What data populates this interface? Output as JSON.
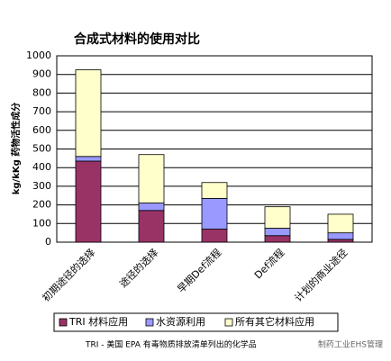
{
  "chart_data": {
    "type": "stacked_bar",
    "title": "合成式材料的使用对比",
    "y_label": "kg/kKg 药物活性成分",
    "categories": [
      "初期途径的选择",
      "途径的选择",
      "早期Def流程",
      "Def流程",
      "计划的商业途径"
    ],
    "series": [
      {
        "name": "TRI 材料应用",
        "color": "#993366",
        "values": [
          435,
          170,
          70,
          35,
          15
        ]
      },
      {
        "name": "水资源利用",
        "color": "#9999ff",
        "values": [
          25,
          40,
          165,
          40,
          35
        ]
      },
      {
        "name": "所有其它材料应用",
        "color": "#ffffcc",
        "values": [
          465,
          260,
          85,
          115,
          100
        ]
      }
    ],
    "ylim": [
      0,
      1000
    ],
    "yticks": [
      0,
      100,
      200,
      300,
      400,
      500,
      600,
      700,
      800,
      900,
      1000
    ],
    "grid": true,
    "legend": "bottom",
    "footnote": "TRI - 美国 EPA 有毒物质排放清单列出的化学品",
    "watermark": "制药工业EHS管理"
  }
}
